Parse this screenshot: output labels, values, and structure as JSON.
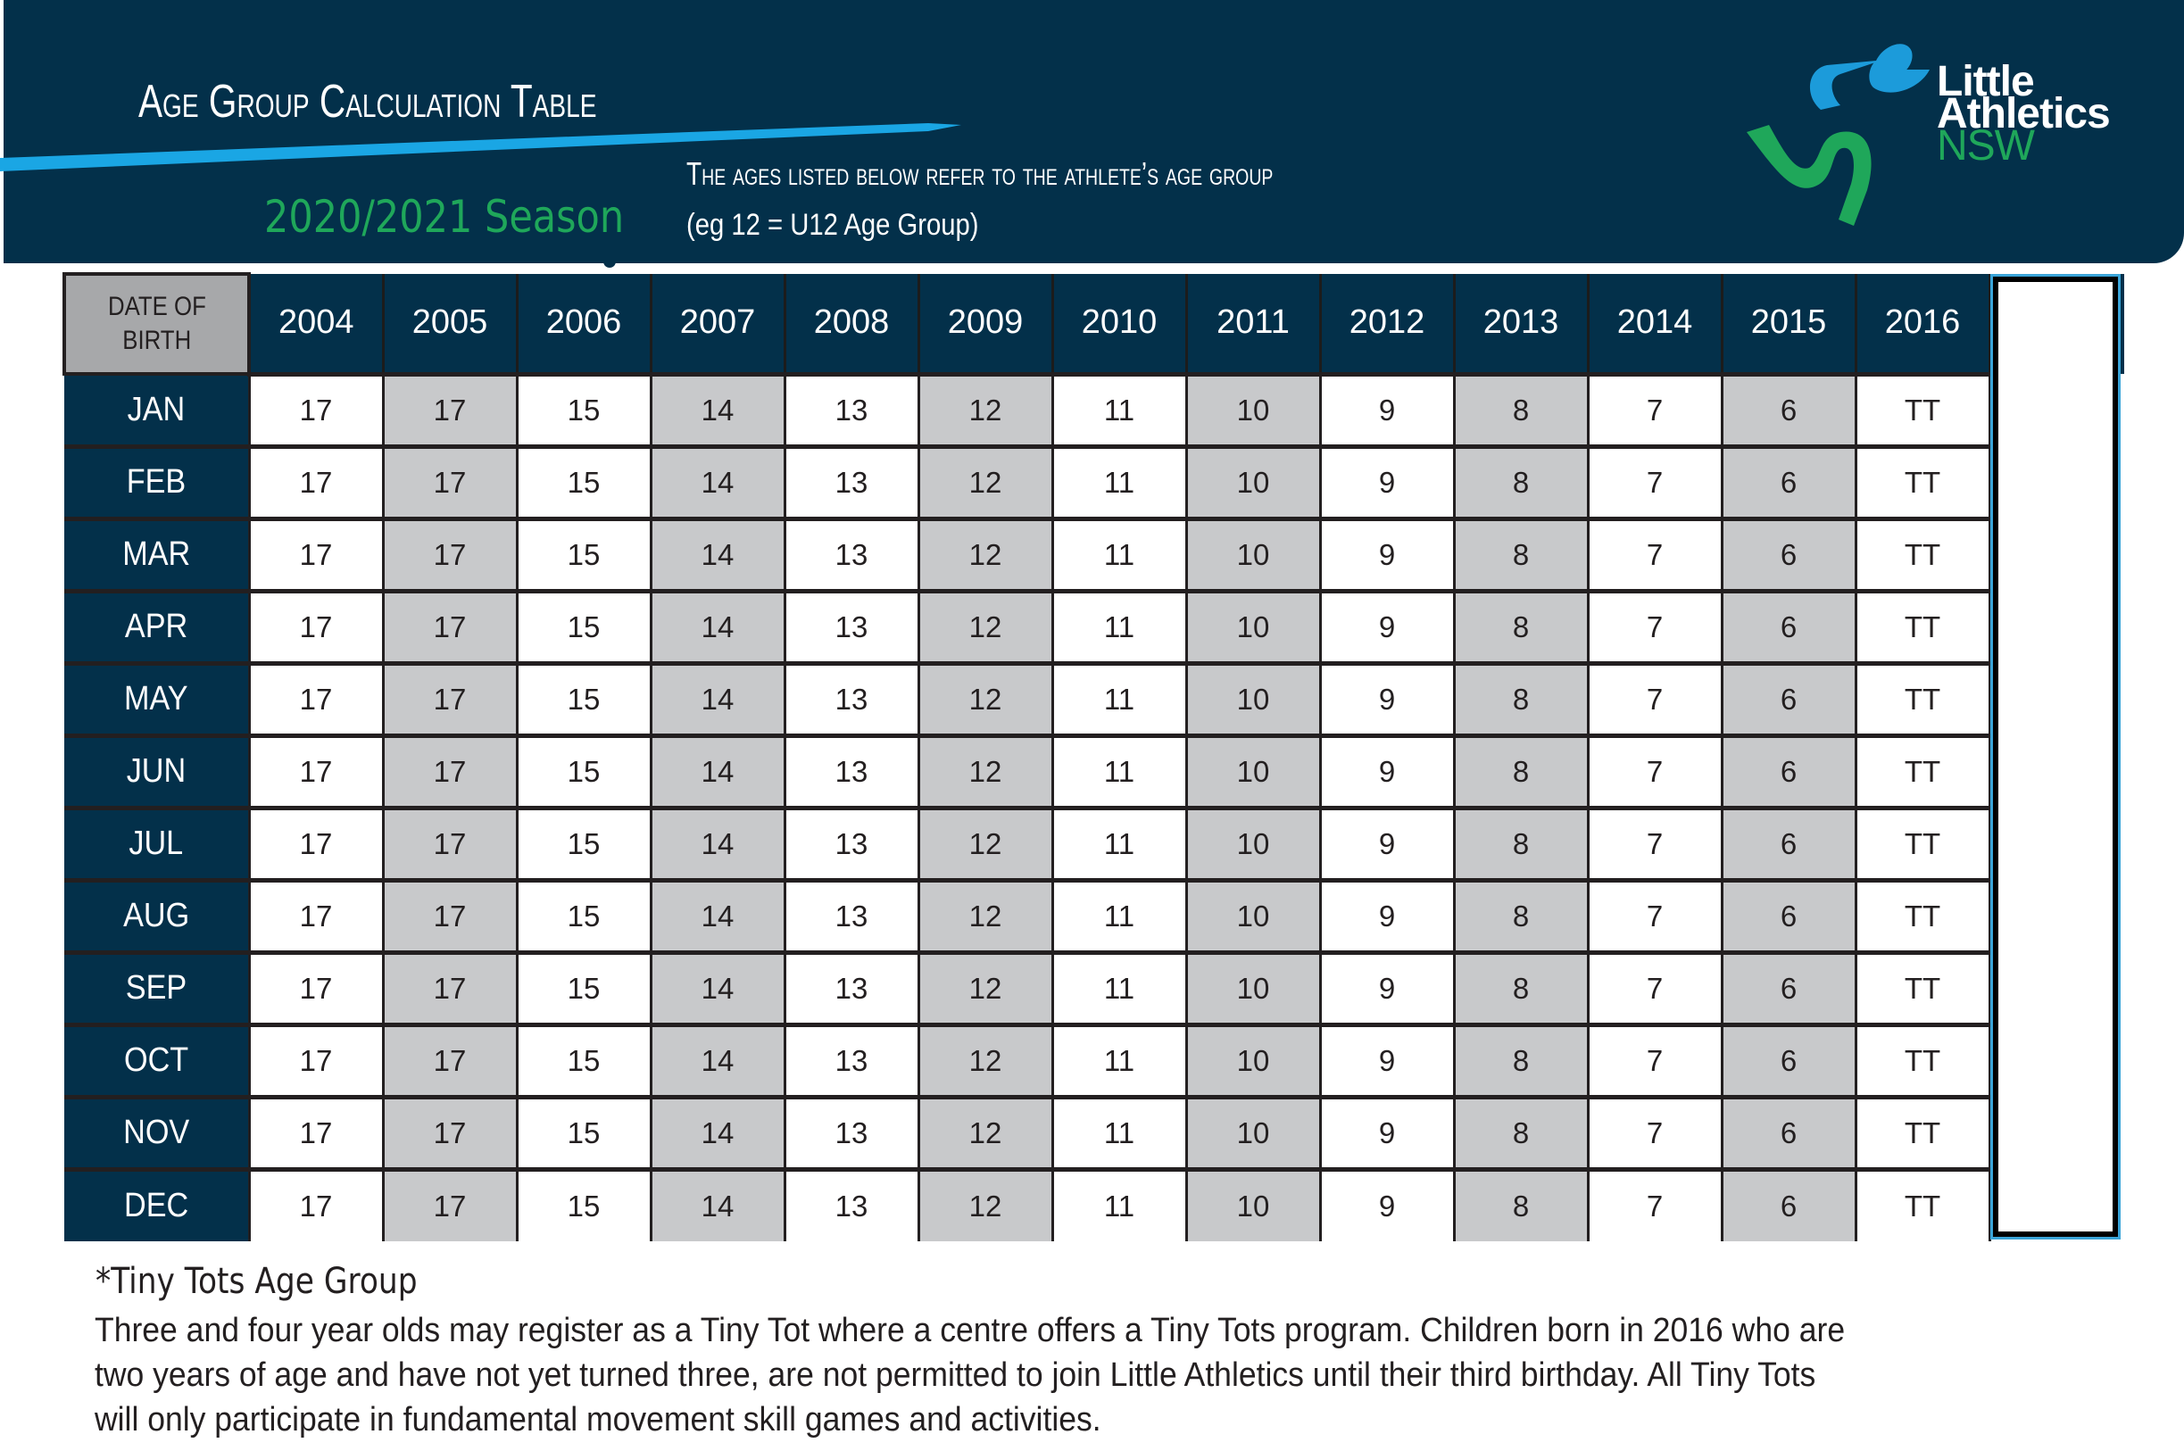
{
  "header": {
    "title": "Age Group Calculation Table",
    "season": "2020/2021 Season",
    "note_line1": "The ages listed below refer to the athlete’s age group",
    "note_line2": "(eg 12 = U12 Age Group)",
    "colors": {
      "navy": "#03304a",
      "stripe": "#1aa6e4",
      "green": "#1fa75a"
    }
  },
  "logo": {
    "icon": "runner-ribbon-icon",
    "line1": "Little",
    "line2": "Athletics",
    "line3": "NSW"
  },
  "table": {
    "corner_label_line1": "DATE OF",
    "corner_label_line2": "BIRTH",
    "years": [
      "2004",
      "2005",
      "2006",
      "2007",
      "2008",
      "2009",
      "2010",
      "2011",
      "2012",
      "2013",
      "2014",
      "2015",
      "2016"
    ],
    "rows": [
      {
        "month": "JAN",
        "values": [
          "17",
          "17",
          "15",
          "14",
          "13",
          "12",
          "11",
          "10",
          "9",
          "8",
          "7",
          "6",
          "TT"
        ]
      },
      {
        "month": "FEB",
        "values": [
          "17",
          "17",
          "15",
          "14",
          "13",
          "12",
          "11",
          "10",
          "9",
          "8",
          "7",
          "6",
          "TT"
        ]
      },
      {
        "month": "MAR",
        "values": [
          "17",
          "17",
          "15",
          "14",
          "13",
          "12",
          "11",
          "10",
          "9",
          "8",
          "7",
          "6",
          "TT"
        ]
      },
      {
        "month": "APR",
        "values": [
          "17",
          "17",
          "15",
          "14",
          "13",
          "12",
          "11",
          "10",
          "9",
          "8",
          "7",
          "6",
          "TT"
        ]
      },
      {
        "month": "MAY",
        "values": [
          "17",
          "17",
          "15",
          "14",
          "13",
          "12",
          "11",
          "10",
          "9",
          "8",
          "7",
          "6",
          "TT"
        ]
      },
      {
        "month": "JUN",
        "values": [
          "17",
          "17",
          "15",
          "14",
          "13",
          "12",
          "11",
          "10",
          "9",
          "8",
          "7",
          "6",
          "TT"
        ]
      },
      {
        "month": "JUL",
        "values": [
          "17",
          "17",
          "15",
          "14",
          "13",
          "12",
          "11",
          "10",
          "9",
          "8",
          "7",
          "6",
          "TT"
        ]
      },
      {
        "month": "AUG",
        "values": [
          "17",
          "17",
          "15",
          "14",
          "13",
          "12",
          "11",
          "10",
          "9",
          "8",
          "7",
          "6",
          "TT"
        ]
      },
      {
        "month": "SEP",
        "values": [
          "17",
          "17",
          "15",
          "14",
          "13",
          "12",
          "11",
          "10",
          "9",
          "8",
          "7",
          "6",
          "TT"
        ]
      },
      {
        "month": "OCT",
        "values": [
          "17",
          "17",
          "15",
          "14",
          "13",
          "12",
          "11",
          "10",
          "9",
          "8",
          "7",
          "6",
          "TT"
        ]
      },
      {
        "month": "NOV",
        "values": [
          "17",
          "17",
          "15",
          "14",
          "13",
          "12",
          "11",
          "10",
          "9",
          "8",
          "7",
          "6",
          "TT"
        ]
      },
      {
        "month": "DEC",
        "values": [
          "17",
          "17",
          "15",
          "14",
          "13",
          "12",
          "11",
          "10",
          "9",
          "8",
          "7",
          "6",
          "TT"
        ]
      }
    ]
  },
  "footnote": {
    "title": "*Tiny Tots Age Group",
    "lines": [
      "Three and four year olds may register as a Tiny Tot where a centre offers a Tiny Tots program. Children born in 2016 who are",
      "two years of age and have not yet turned three, are not permitted to join Little Athletics until their third birthday. All Tiny Tots",
      "will only participate in fundamental movement skill games and activities."
    ]
  }
}
